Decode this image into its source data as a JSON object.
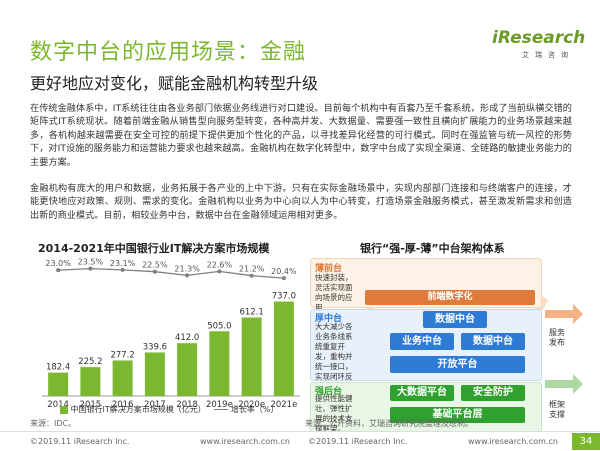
{
  "header": {
    "title": "数字中台的应用场景：金融",
    "subtitle": "更好地应对变化，赋能金融机构转型升级",
    "logo_main": "iResearch",
    "logo_sub": "艾瑞咨询"
  },
  "body": {
    "paragraph1": "在传统金融体系中，IT系统往往由各业务部门依据业务线进行对口建设。目前每个机构中有百套乃至千套系统，形成了当前纵横交错的矩阵式IT系统现状。随着前端金融从销售型向服务型转变，各种高并发、大数据量、需要强一致性且横向扩展能力的业务场景越来越多，各机构越来越需要在安全可控的前提下提供更加个性化的产品，以寻找差异化经营的可行模式。同时在强监管与统一风控的形势下，对IT设施的服务能力和运营能力要求也越来越高。金融机构在数字化转型中，数字中台成了实现全渠道、全链路的敏捷业务能力的主要方案。",
    "paragraph2": "金融机构有庞大的用户和数据，业务拓展于各产业的上中下游。只有在实际金融场景中，实现内部部门连接和与终端客户的连接，才能更快地应对政策、规则、需求的变化。金融机构以业务为中心向以人为中心转变，打造场景金融服务模式，甚至激发新需求和创造出新的商业模式。目前，相较业务中台，数据中台在金融领域运用相对更多。"
  },
  "chart_data": {
    "type": "bar",
    "title": "2014-2021年中国银行业IT解决方案市场规模",
    "categories": [
      "2014",
      "2015",
      "2016",
      "2017",
      "2018",
      "2019e",
      "2020e",
      "2021e"
    ],
    "series": [
      {
        "name": "中国银行IT解决方案市场规模（亿元）",
        "kind": "bar",
        "color": "#7cb82f",
        "values": [
          182.4,
          225.2,
          277.2,
          339.6,
          412.0,
          505.0,
          612.1,
          737.0
        ]
      },
      {
        "name": "增长率（%）",
        "kind": "line",
        "color": "#7f7f7f",
        "values": [
          23.0,
          23.5,
          23.1,
          22.5,
          21.3,
          22.6,
          21.2,
          20.4
        ],
        "labels": [
          "23.0%",
          "23.5%",
          "23.1%",
          "22.5%",
          "21.3%",
          "22.6%",
          "21.2%",
          "20.4%"
        ]
      }
    ],
    "bar_labels": [
      "182.4",
      "225.2",
      "277.2",
      "339.6",
      "412.0",
      "505.0",
      "612.1",
      "737.0"
    ],
    "ylim": [
      0,
      780
    ],
    "ylim_rate": [
      12,
      25
    ],
    "source": "来源：IDC。"
  },
  "architecture": {
    "title": "银行“强-厚-薄”中台架构体系",
    "arc_labels": {
      "left": "个人",
      "top_left": "对公",
      "top_right": "线上",
      "right": "线下"
    },
    "top_bar": "前端数字化",
    "thin": {
      "label": "薄前台",
      "desc": "快速封装，灵活实现面向场景的应用"
    },
    "thick": {
      "label": "厚中台",
      "desc": "大大减少各业务条线系统重复开发，重构并统一接口，实现闭环反馈。",
      "buttons": {
        "data_center": "数据中台",
        "business_center": "业务中台",
        "data_center2": "数据中台",
        "open_platform": "开放平台"
      }
    },
    "strong": {
      "label": "强后台",
      "desc": "提供性能健壮、弹性扩展的技术支撑框架。",
      "buttons": {
        "big_data": "大数据平台",
        "security": "安全防护",
        "base": "基础平台层"
      }
    },
    "side_labels": {
      "service": "服务发布",
      "frame": "框架支撑"
    },
    "source": "来源：公开资料，艾瑞咨询研究院整理及绘制。"
  },
  "footer": {
    "left_copyright": "©2019.11 iResearch Inc.",
    "left_url": "www.iresearch.com.cn",
    "right_copyright": "©2019.11 iResearch Inc.",
    "right_url": "www.iresearch.com.cn",
    "page": "34"
  }
}
